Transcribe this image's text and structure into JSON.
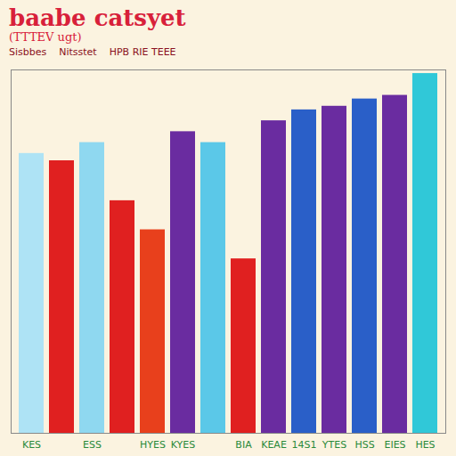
{
  "chart_data": {
    "type": "bar",
    "title": "baabe catsyet",
    "subtitle": "(TTTEV ugt)",
    "annotations": [
      "Sisbbes",
      "Nitsstet",
      "HPB RIE TEEE"
    ],
    "categories": [
      "KES",
      null,
      "ESS",
      null,
      "HYES",
      "KYES",
      null,
      "BIA",
      "KEAE",
      "14S1",
      "YTES",
      "HSS",
      "EIES",
      "HES"
    ],
    "values": [
      77,
      75,
      80,
      64,
      56,
      83,
      80,
      48,
      86,
      89,
      90,
      92,
      93,
      99
    ],
    "colors": [
      "#aee3f5",
      "#e02020",
      "#8fd8f0",
      "#e02020",
      "#e8401c",
      "#6a2ca0",
      "#5bc8e8",
      "#e02020",
      "#6a2ca0",
      "#2a5fc8",
      "#6a2ca0",
      "#2a5fc8",
      "#6a2ca0",
      "#30c8d8"
    ],
    "ylim": [
      0,
      100
    ],
    "grid": false,
    "tick_labels": "x"
  }
}
